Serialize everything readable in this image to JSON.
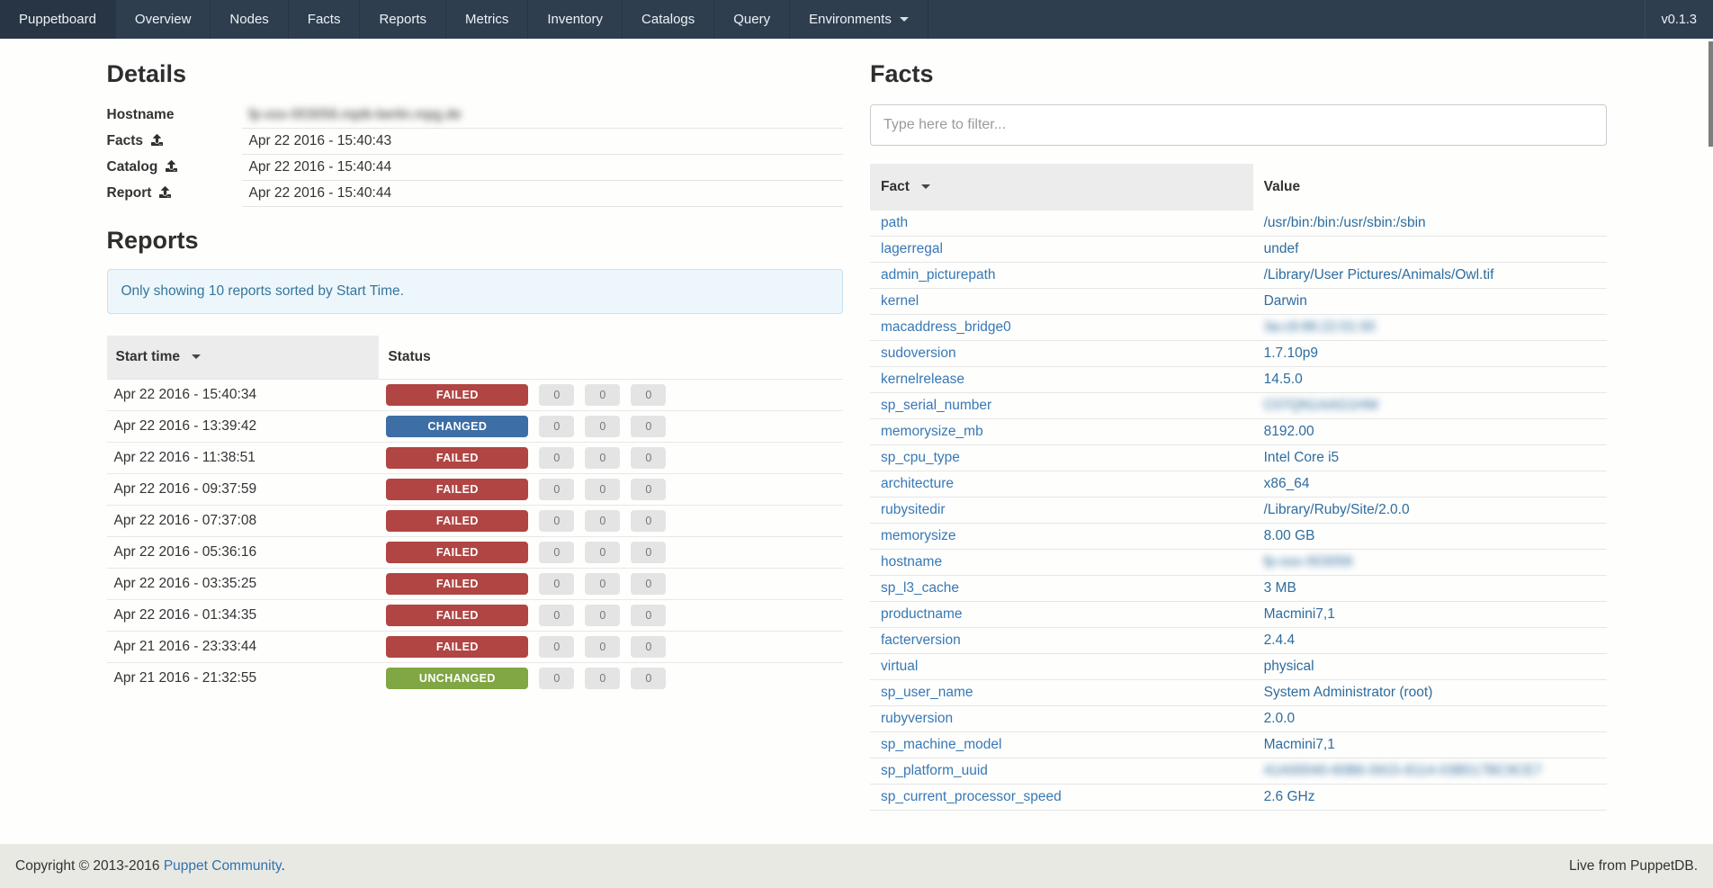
{
  "navbar": {
    "brand": "Puppetboard",
    "items": [
      "Overview",
      "Nodes",
      "Facts",
      "Reports",
      "Metrics",
      "Inventory",
      "Catalogs",
      "Query"
    ],
    "dropdown": {
      "label": "Environments"
    },
    "version": "v0.1.3"
  },
  "details": {
    "title": "Details",
    "rows": [
      {
        "label": "Hostname",
        "has_icon": false,
        "value": "fp-osx-003056.mpib-berlin.mpg.de",
        "blurred": true
      },
      {
        "label": "Facts",
        "has_icon": true,
        "value": "Apr 22 2016 - 15:40:43",
        "blurred": false
      },
      {
        "label": "Catalog",
        "has_icon": true,
        "value": "Apr 22 2016 - 15:40:44",
        "blurred": false
      },
      {
        "label": "Report",
        "has_icon": true,
        "value": "Apr 22 2016 - 15:40:44",
        "blurred": false
      }
    ]
  },
  "reports": {
    "title": "Reports",
    "notice": "Only showing 10 reports sorted by Start Time.",
    "columns": {
      "start_time": "Start time",
      "status": "Status"
    },
    "rows": [
      {
        "start_time": "Apr 22 2016 - 15:40:34",
        "status": "FAILED",
        "counts": [
          "0",
          "0",
          "0"
        ]
      },
      {
        "start_time": "Apr 22 2016 - 13:39:42",
        "status": "CHANGED",
        "counts": [
          "0",
          "0",
          "0"
        ]
      },
      {
        "start_time": "Apr 22 2016 - 11:38:51",
        "status": "FAILED",
        "counts": [
          "0",
          "0",
          "0"
        ]
      },
      {
        "start_time": "Apr 22 2016 - 09:37:59",
        "status": "FAILED",
        "counts": [
          "0",
          "0",
          "0"
        ]
      },
      {
        "start_time": "Apr 22 2016 - 07:37:08",
        "status": "FAILED",
        "counts": [
          "0",
          "0",
          "0"
        ]
      },
      {
        "start_time": "Apr 22 2016 - 05:36:16",
        "status": "FAILED",
        "counts": [
          "0",
          "0",
          "0"
        ]
      },
      {
        "start_time": "Apr 22 2016 - 03:35:25",
        "status": "FAILED",
        "counts": [
          "0",
          "0",
          "0"
        ]
      },
      {
        "start_time": "Apr 22 2016 - 01:34:35",
        "status": "FAILED",
        "counts": [
          "0",
          "0",
          "0"
        ]
      },
      {
        "start_time": "Apr 21 2016 - 23:33:44",
        "status": "FAILED",
        "counts": [
          "0",
          "0",
          "0"
        ]
      },
      {
        "start_time": "Apr 21 2016 - 21:32:55",
        "status": "UNCHANGED",
        "counts": [
          "0",
          "0",
          "0"
        ]
      }
    ]
  },
  "facts": {
    "title": "Facts",
    "filter_placeholder": "Type here to filter...",
    "columns": {
      "fact": "Fact",
      "value": "Value"
    },
    "rows": [
      {
        "name": "path",
        "value": "/usr/bin:/bin:/usr/sbin:/sbin",
        "blurred": false
      },
      {
        "name": "lagerregal",
        "value": "undef",
        "blurred": false
      },
      {
        "name": "admin_picturepath",
        "value": "/Library/User Pictures/Animals/Owl.tif",
        "blurred": false
      },
      {
        "name": "kernel",
        "value": "Darwin",
        "blurred": false
      },
      {
        "name": "macaddress_bridge0",
        "value": "3a:c9:86:22:01:00",
        "blurred": true
      },
      {
        "name": "sudoversion",
        "value": "1.7.10p9",
        "blurred": false
      },
      {
        "name": "kernelrelease",
        "value": "14.5.0",
        "blurred": false
      },
      {
        "name": "sp_serial_number",
        "value": "C07QN1AAG1HW",
        "blurred": true
      },
      {
        "name": "memorysize_mb",
        "value": "8192.00",
        "blurred": false
      },
      {
        "name": "sp_cpu_type",
        "value": "Intel Core i5",
        "blurred": false
      },
      {
        "name": "architecture",
        "value": "x86_64",
        "blurred": false
      },
      {
        "name": "rubysitedir",
        "value": "/Library/Ruby/Site/2.0.0",
        "blurred": false
      },
      {
        "name": "memorysize",
        "value": "8.00 GB",
        "blurred": false
      },
      {
        "name": "hostname",
        "value": "fp-osx-003056",
        "blurred": true
      },
      {
        "name": "sp_l3_cache",
        "value": "3 MB",
        "blurred": false
      },
      {
        "name": "productname",
        "value": "Macmini7,1",
        "blurred": false
      },
      {
        "name": "facterversion",
        "value": "2.4.4",
        "blurred": false
      },
      {
        "name": "virtual",
        "value": "physical",
        "blurred": false
      },
      {
        "name": "sp_user_name",
        "value": "System Administrator (root)",
        "blurred": false
      },
      {
        "name": "rubyversion",
        "value": "2.0.0",
        "blurred": false
      },
      {
        "name": "sp_machine_model",
        "value": "Macmini7,1",
        "blurred": false
      },
      {
        "name": "sp_platform_uuid",
        "value": "41A00040-60B6-5915-8114-03B517BC9CE7",
        "blurred": true
      },
      {
        "name": "sp_current_processor_speed",
        "value": "2.6 GHz",
        "blurred": false
      }
    ]
  },
  "footer": {
    "copyright_prefix": "Copyright © 2013-2016 ",
    "link_label": "Puppet Community",
    "suffix": ".",
    "right_text": "Live from PuppetDB."
  },
  "colors": {
    "navbar_bg": "#2e3e4f",
    "link": "#3878b4",
    "status": {
      "FAILED": "#b04543",
      "CHANGED": "#3d6ea5",
      "UNCHANGED": "#80a744"
    }
  }
}
